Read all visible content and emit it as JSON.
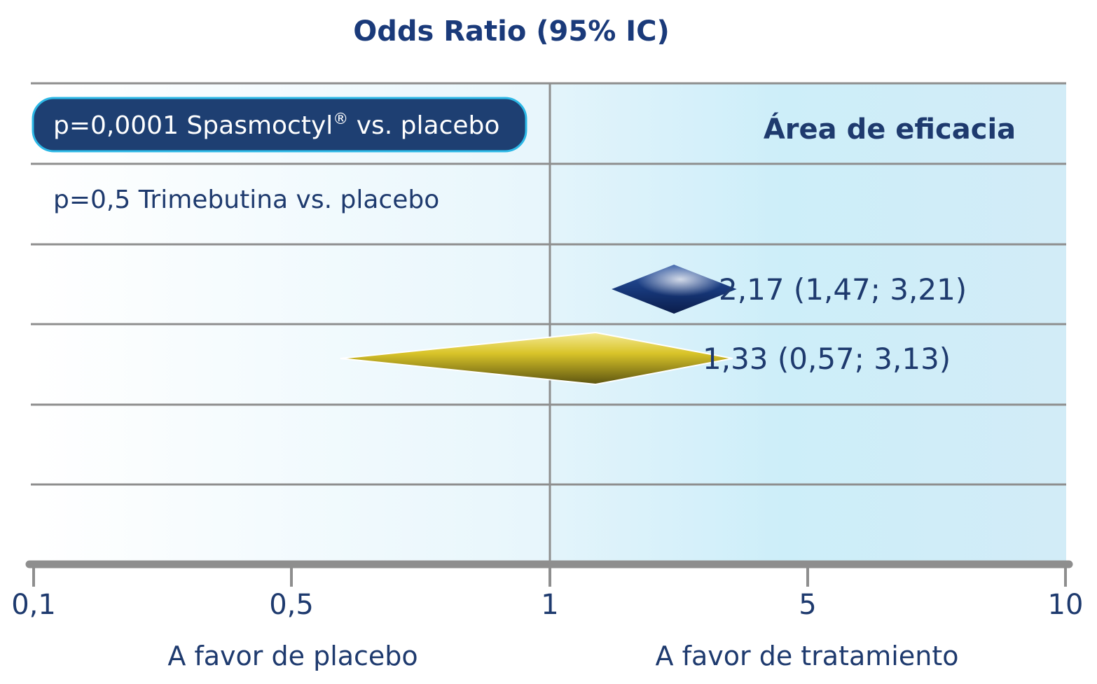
{
  "chart_data": {
    "type": "forest",
    "title": "Odds Ratio (95% IC)",
    "x_scale": "custom-ordinal",
    "x_ticks": [
      "0,1",
      "0,5",
      "1",
      "5",
      "10"
    ],
    "x_tick_values": [
      0.1,
      0.5,
      1,
      5,
      10
    ],
    "xlim": [
      0.1,
      10
    ],
    "reference_line": 1,
    "grid": true,
    "region_label_left": "A favor de placebo",
    "region_label_right": "A favor de tratamiento",
    "efficacy_area_label": "Área de eficacia",
    "legend_entries": [
      {
        "prefix": "p=0,0001 Spasmoctyl",
        "sup": "®",
        "suffix": " vs. placebo",
        "highlighted": true
      },
      {
        "prefix": "p=0,5 Trimebutina vs. placebo",
        "sup": "",
        "suffix": "",
        "highlighted": false
      }
    ],
    "series": [
      {
        "name": "Spasmoctyl",
        "or": 2.17,
        "ci_low": 1.47,
        "ci_high": 3.21,
        "label": "2,17 (1,47; 3,21)",
        "color": "#1e3a7a"
      },
      {
        "name": "Trimebutina",
        "or": 1.33,
        "ci_low": 0.57,
        "ci_high": 3.13,
        "label": "1,33 (0,57; 3,13)",
        "color": "#c8b614"
      }
    ],
    "colors": {
      "title": "#1a3a7a",
      "text": "#1e3a6e",
      "axis": "#8e8e8e",
      "pill_fill": "#1e3f72",
      "pill_border": "#2cb8e6",
      "area_light": "#e6f6fc",
      "area_dark": "#cdeef9"
    }
  }
}
